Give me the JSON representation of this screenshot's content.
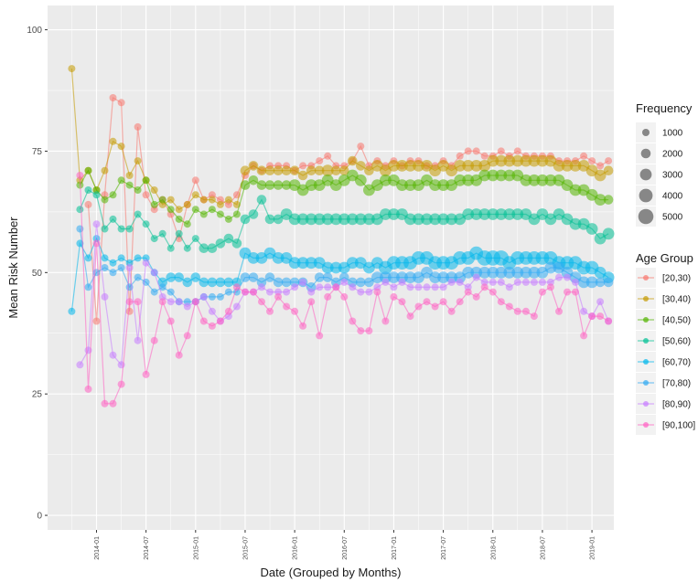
{
  "chart_data": {
    "type": "line",
    "title": "",
    "xlabel": "Date (Grouped by Months)",
    "ylabel": "Mean Risk Number",
    "ylim": [
      -3,
      105
    ],
    "yticks": [
      0,
      25,
      50,
      75,
      100
    ],
    "xticks": [
      "2014-01",
      "2014-07",
      "2015-01",
      "2015-07",
      "2016-01",
      "2016-07",
      "2017-01",
      "2017-07",
      "2018-01",
      "2018-07",
      "2019-01"
    ],
    "x": [
      "2013-10",
      "2013-11",
      "2013-12",
      "2014-01",
      "2014-02",
      "2014-03",
      "2014-04",
      "2014-05",
      "2014-06",
      "2014-07",
      "2014-08",
      "2014-09",
      "2014-10",
      "2014-11",
      "2014-12",
      "2015-01",
      "2015-02",
      "2015-03",
      "2015-04",
      "2015-05",
      "2015-06",
      "2015-07",
      "2015-08",
      "2015-09",
      "2015-10",
      "2015-11",
      "2015-12",
      "2016-01",
      "2016-02",
      "2016-03",
      "2016-04",
      "2016-05",
      "2016-06",
      "2016-07",
      "2016-08",
      "2016-09",
      "2016-10",
      "2016-11",
      "2016-12",
      "2017-01",
      "2017-02",
      "2017-03",
      "2017-04",
      "2017-05",
      "2017-06",
      "2017-07",
      "2017-08",
      "2017-09",
      "2017-10",
      "2017-11",
      "2017-12",
      "2018-01",
      "2018-02",
      "2018-03",
      "2018-04",
      "2018-05",
      "2018-06",
      "2018-07",
      "2018-08",
      "2018-09",
      "2018-10",
      "2018-11",
      "2018-12",
      "2019-01",
      "2019-02",
      "2019-03"
    ],
    "series": [
      {
        "name": "[20,30)",
        "color": "#F8766D",
        "values": [
          null,
          null,
          64,
          40,
          66,
          86,
          85,
          42,
          80,
          66,
          63,
          65,
          62,
          57,
          64,
          69,
          65,
          66,
          65,
          64,
          66,
          70,
          72,
          71,
          72,
          72,
          72,
          71,
          72,
          72,
          73,
          74,
          72,
          72,
          73,
          76,
          72,
          73,
          72,
          73,
          72,
          73,
          73,
          72,
          72,
          73,
          72,
          74,
          75,
          75,
          74,
          74,
          75,
          74,
          75,
          74,
          74,
          74,
          74,
          73,
          73,
          73,
          74,
          73,
          72,
          73
        ],
        "freq": [
          0,
          0,
          1,
          1,
          1,
          1,
          1,
          1,
          1,
          1,
          1,
          1,
          1,
          1,
          1,
          1,
          1,
          1,
          1,
          1,
          1,
          1,
          1,
          1,
          1,
          1,
          1,
          1,
          1,
          1,
          1,
          1,
          1,
          1,
          1,
          1,
          1,
          1,
          1,
          1,
          1,
          1,
          1,
          1,
          1,
          1,
          1,
          1,
          1,
          1,
          1,
          1,
          1,
          1,
          1,
          1,
          1,
          1,
          1,
          1,
          1,
          1,
          1,
          1,
          1,
          1
        ]
      },
      {
        "name": "[30,40)",
        "color": "#C49A00",
        "values": [
          92,
          69,
          71,
          67,
          71,
          77,
          76,
          70,
          73,
          69,
          67,
          64,
          65,
          63,
          64,
          66,
          65,
          65,
          64,
          65,
          64,
          71,
          72,
          71,
          71,
          71,
          71,
          71,
          70,
          71,
          71,
          71,
          71,
          71,
          73,
          72,
          71,
          72,
          71,
          72,
          72,
          72,
          72,
          72,
          71,
          72,
          71,
          72,
          72,
          72,
          72,
          73,
          73,
          73,
          73,
          73,
          73,
          73,
          73,
          72,
          72,
          72,
          72,
          71,
          70,
          71
        ],
        "freq": [
          1,
          1,
          1,
          1,
          1,
          1,
          1,
          1,
          1,
          1,
          1,
          1,
          1,
          1,
          1,
          1,
          1,
          1,
          1,
          1,
          1,
          2,
          2,
          2,
          2,
          2,
          2,
          2,
          2,
          2,
          2,
          3,
          2,
          2,
          2,
          2,
          2,
          3,
          3,
          3,
          3,
          3,
          3,
          3,
          3,
          3,
          3,
          3,
          3,
          3,
          3,
          3,
          3,
          3,
          3,
          3,
          3,
          3,
          3,
          3,
          3,
          3,
          3,
          3,
          3,
          2
        ]
      },
      {
        "name": "[40,50)",
        "color": "#53B400",
        "values": [
          null,
          68,
          71,
          67,
          65,
          66,
          69,
          68,
          67,
          69,
          64,
          65,
          63,
          61,
          60,
          63,
          62,
          63,
          62,
          61,
          62,
          68,
          69,
          68,
          68,
          68,
          68,
          68,
          67,
          68,
          68,
          69,
          68,
          69,
          70,
          69,
          67,
          68,
          69,
          69,
          68,
          68,
          68,
          69,
          68,
          68,
          68,
          69,
          69,
          69,
          70,
          70,
          70,
          70,
          70,
          69,
          69,
          69,
          69,
          69,
          68,
          67,
          67,
          66,
          65,
          65
        ],
        "freq": [
          0,
          1,
          1,
          1,
          1,
          1,
          1,
          1,
          1,
          1,
          1,
          1,
          1,
          1,
          1,
          1,
          1,
          1,
          1,
          1,
          1,
          2,
          2,
          2,
          2,
          2,
          2,
          3,
          3,
          3,
          3,
          3,
          3,
          3,
          3,
          3,
          3,
          3,
          3,
          3,
          3,
          3,
          3,
          3,
          3,
          3,
          3,
          3,
          3,
          3,
          3,
          3,
          3,
          3,
          3,
          3,
          3,
          3,
          3,
          3,
          3,
          3,
          3,
          3,
          3,
          2
        ]
      },
      {
        "name": "[50,60)",
        "color": "#00C094",
        "values": [
          null,
          63,
          67,
          66,
          59,
          61,
          59,
          59,
          62,
          60,
          57,
          58,
          55,
          58,
          55,
          57,
          55,
          55,
          56,
          57,
          56,
          61,
          62,
          65,
          61,
          61,
          62,
          61,
          61,
          61,
          61,
          61,
          61,
          61,
          61,
          61,
          61,
          61,
          62,
          62,
          62,
          61,
          61,
          61,
          61,
          61,
          61,
          61,
          62,
          62,
          62,
          62,
          62,
          62,
          62,
          62,
          61,
          62,
          61,
          62,
          61,
          60,
          60,
          59,
          57,
          58
        ],
        "freq": [
          0,
          1,
          1,
          1,
          1,
          1,
          1,
          1,
          1,
          1,
          1,
          1,
          1,
          1,
          1,
          1,
          2,
          2,
          2,
          2,
          2,
          2,
          2,
          2,
          2,
          2,
          3,
          3,
          3,
          3,
          3,
          3,
          3,
          3,
          3,
          3,
          3,
          3,
          3,
          3,
          3,
          3,
          3,
          3,
          3,
          3,
          3,
          3,
          3,
          3,
          3,
          3,
          3,
          3,
          3,
          3,
          3,
          3,
          3,
          3,
          3,
          3,
          3,
          3,
          3,
          3
        ]
      },
      {
        "name": "[60,70)",
        "color": "#00B6EB",
        "values": [
          42,
          56,
          53,
          57,
          53,
          52,
          53,
          52,
          53,
          53,
          50,
          48,
          49,
          49,
          48,
          49,
          48,
          48,
          48,
          48,
          48,
          54,
          53,
          53,
          54,
          53,
          53,
          52,
          52,
          52,
          52,
          51,
          51,
          51,
          52,
          52,
          51,
          52,
          51,
          52,
          52,
          52,
          53,
          53,
          52,
          52,
          52,
          53,
          53,
          54,
          53,
          53,
          53,
          52,
          53,
          53,
          53,
          53,
          53,
          52,
          52,
          52,
          51,
          51,
          50,
          49
        ],
        "freq": [
          1,
          1,
          1,
          1,
          1,
          1,
          1,
          1,
          1,
          1,
          1,
          2,
          2,
          2,
          2,
          2,
          2,
          2,
          2,
          2,
          2,
          3,
          3,
          3,
          3,
          3,
          3,
          3,
          3,
          3,
          3,
          3,
          3,
          3,
          3,
          3,
          3,
          3,
          4,
          4,
          4,
          4,
          4,
          4,
          4,
          4,
          4,
          4,
          4,
          4,
          5,
          5,
          5,
          4,
          4,
          4,
          4,
          4,
          4,
          4,
          4,
          4,
          4,
          4,
          3,
          3
        ]
      },
      {
        "name": "[70,80)",
        "color": "#2FA9F2",
        "values": [
          null,
          59,
          47,
          50,
          51,
          50,
          51,
          47,
          49,
          48,
          46,
          47,
          46,
          44,
          44,
          44,
          45,
          45,
          45,
          46,
          46,
          49,
          49,
          48,
          49,
          48,
          48,
          48,
          48,
          47,
          49,
          49,
          48,
          49,
          48,
          48,
          48,
          49,
          49,
          49,
          49,
          49,
          49,
          50,
          49,
          49,
          49,
          49,
          50,
          50,
          50,
          50,
          50,
          50,
          50,
          50,
          50,
          50,
          51,
          51,
          50,
          49,
          48,
          48,
          48,
          48
        ],
        "freq": [
          0,
          1,
          1,
          1,
          1,
          1,
          1,
          1,
          1,
          1,
          1,
          1,
          1,
          1,
          1,
          1,
          1,
          1,
          1,
          1,
          1,
          2,
          2,
          2,
          2,
          2,
          2,
          2,
          2,
          2,
          2,
          2,
          2,
          2,
          2,
          2,
          2,
          3,
          3,
          3,
          3,
          3,
          3,
          3,
          3,
          3,
          3,
          3,
          3,
          3,
          3,
          3,
          3,
          3,
          3,
          3,
          3,
          3,
          3,
          3,
          3,
          3,
          3,
          3,
          2,
          2
        ]
      },
      {
        "name": "[80,90)",
        "color": "#C77CFF",
        "values": [
          null,
          31,
          34,
          60,
          45,
          33,
          31,
          51,
          36,
          52,
          50,
          45,
          44,
          44,
          43,
          44,
          45,
          42,
          40,
          41,
          43,
          46,
          46,
          47,
          46,
          46,
          46,
          47,
          48,
          46,
          47,
          47,
          47,
          48,
          47,
          46,
          46,
          47,
          48,
          47,
          48,
          47,
          47,
          47,
          47,
          47,
          48,
          48,
          47,
          49,
          48,
          48,
          48,
          47,
          48,
          48,
          48,
          48,
          48,
          49,
          49,
          48,
          42,
          41,
          44,
          40
        ],
        "freq": [
          0,
          1,
          1,
          1,
          1,
          1,
          1,
          1,
          1,
          1,
          1,
          1,
          1,
          1,
          1,
          1,
          1,
          1,
          1,
          1,
          1,
          1,
          1,
          1,
          1,
          1,
          1,
          1,
          1,
          1,
          1,
          1,
          1,
          1,
          1,
          1,
          1,
          1,
          1,
          1,
          1,
          1,
          1,
          1,
          1,
          1,
          1,
          1,
          1,
          1,
          1,
          1,
          1,
          1,
          1,
          1,
          1,
          1,
          1,
          1,
          1,
          1,
          1,
          1,
          1,
          1
        ]
      },
      {
        "name": "[90,100]",
        "color": "#FF61C3",
        "values": [
          null,
          70,
          26,
          56,
          23,
          23,
          27,
          44,
          44,
          29,
          36,
          44,
          40,
          33,
          37,
          44,
          40,
          39,
          40,
          42,
          47,
          46,
          46,
          44,
          42,
          45,
          43,
          42,
          39,
          44,
          37,
          45,
          47,
          45,
          40,
          38,
          38,
          46,
          40,
          45,
          44,
          41,
          43,
          44,
          43,
          44,
          42,
          44,
          46,
          45,
          47,
          46,
          44,
          43,
          42,
          42,
          41,
          46,
          47,
          42,
          46,
          46,
          37,
          41,
          41,
          40
        ],
        "freq": [
          0,
          1,
          1,
          1,
          1,
          1,
          1,
          1,
          1,
          1,
          1,
          1,
          1,
          1,
          1,
          1,
          1,
          1,
          1,
          1,
          1,
          1,
          1,
          1,
          1,
          1,
          1,
          1,
          1,
          1,
          1,
          1,
          1,
          1,
          1,
          1,
          1,
          1,
          1,
          1,
          1,
          1,
          1,
          1,
          1,
          1,
          1,
          1,
          1,
          1,
          1,
          1,
          1,
          1,
          1,
          1,
          1,
          1,
          1,
          1,
          1,
          1,
          1,
          1,
          1,
          1
        ]
      }
    ],
    "legend_size": {
      "title": "Frequency",
      "values": [
        1000,
        2000,
        3000,
        4000,
        5000
      ]
    },
    "legend_color": {
      "title": "Age Group",
      "items": [
        "[20,30)",
        "[30,40)",
        "[40,50)",
        "[50,60)",
        "[60,70)",
        "[70,80)",
        "[80,90)",
        "[90,100]"
      ]
    },
    "legend_placement": "right",
    "grid": true,
    "panel_bg": "#EBEBEB"
  }
}
